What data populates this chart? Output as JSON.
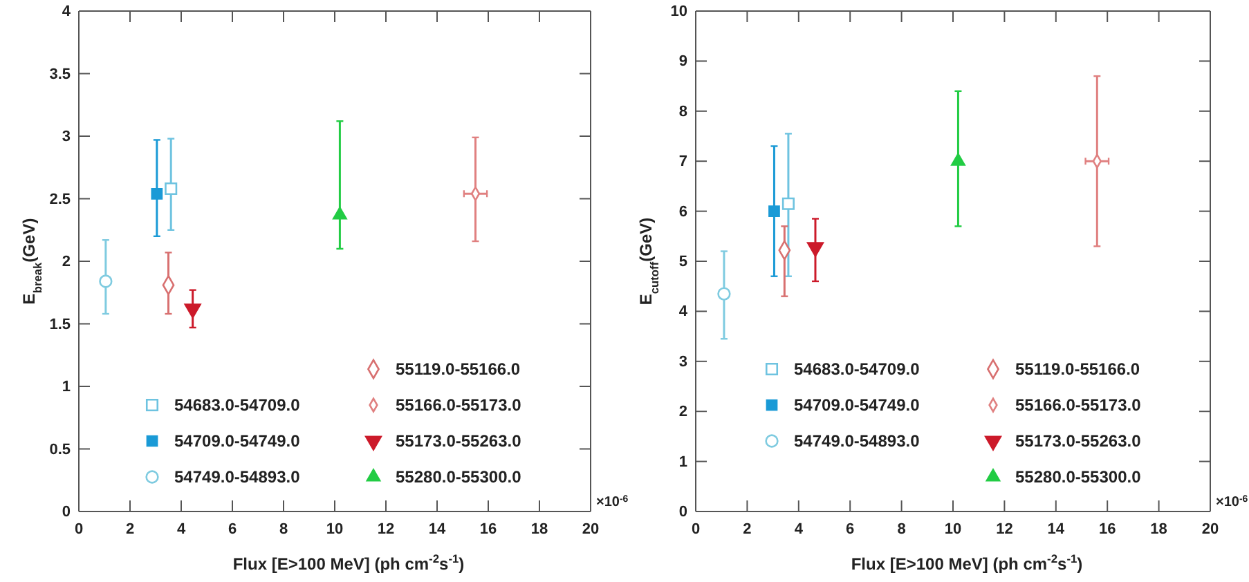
{
  "chart_data": [
    {
      "type": "scatter",
      "xlabel": "Flux [E>100 MeV] (ph cm$^{-2}$s$^{-1}$)",
      "ylabel": "E$_{break}$(GeV)",
      "annotations": [
        "×10$^{-6}$"
      ],
      "xlim": [
        0,
        20
      ],
      "xticks": [
        0,
        2,
        4,
        6,
        8,
        10,
        12,
        14,
        16,
        18,
        20
      ],
      "ylim": [
        0,
        4
      ],
      "yticks": [
        0,
        0.5,
        1,
        1.5,
        2,
        2.5,
        3,
        3.5,
        4
      ],
      "legend": "bottom right",
      "grid": false,
      "series": [
        {
          "name": "54683.0-54709.0",
          "color": "#6ec3e0",
          "marker": "square",
          "x": [
            3.6
          ],
          "values": [
            2.58
          ],
          "errors": [
            [
              2.25,
              2.98
            ]
          ]
        },
        {
          "name": "54709.0-54749.0",
          "color": "#1a9ad6",
          "marker": "square",
          "x": [
            3.05
          ],
          "values": [
            2.54
          ],
          "errors": [
            [
              2.2,
              2.97
            ]
          ]
        },
        {
          "name": "54749.0-54893.0",
          "color": "#7fcbe0",
          "marker": "circle",
          "x": [
            1.05
          ],
          "values": [
            1.84
          ],
          "errors": [
            [
              1.58,
              2.17
            ]
          ]
        },
        {
          "name": "55119.0-55166.0",
          "color": "#d87070",
          "marker": "diamond",
          "x": [
            3.5
          ],
          "values": [
            1.81
          ],
          "errors": [
            [
              1.58,
              2.07
            ]
          ]
        },
        {
          "name": "55166.0-55173.0",
          "color": "#e08080",
          "marker": "diamond",
          "x": [
            15.5
          ],
          "values": [
            2.54
          ],
          "errors": [
            [
              2.16,
              2.99
            ]
          ],
          "xerrors": [
            0.45
          ]
        },
        {
          "name": "55173.0-55263.0",
          "color": "#cc1a2a",
          "marker": "triangle",
          "x": [
            4.45
          ],
          "values": [
            1.62
          ],
          "errors": [
            [
              1.47,
              1.77
            ]
          ]
        },
        {
          "name": "55280.0-55300.0",
          "color": "#22cc44",
          "marker": "triangle",
          "x": [
            10.2
          ],
          "values": [
            2.37
          ],
          "errors": [
            [
              2.1,
              3.12
            ]
          ]
        }
      ]
    },
    {
      "type": "scatter",
      "xlabel": "Flux [E>100 MeV] (ph cm$^{-2}$s$^{-1}$)",
      "ylabel": "E$_{cutoff}$(GeV)",
      "annotations": [
        "×10$^{-6}$"
      ],
      "xlim": [
        0,
        20
      ],
      "xticks": [
        0,
        2,
        4,
        6,
        8,
        10,
        12,
        14,
        16,
        18,
        20
      ],
      "ylim": [
        0,
        10
      ],
      "yticks": [
        0,
        1,
        2,
        3,
        4,
        5,
        6,
        7,
        8,
        9,
        10
      ],
      "legend": "bottom right",
      "grid": false,
      "series": [
        {
          "name": "54683.0-54709.0",
          "color": "#6ec3e0",
          "marker": "square",
          "x": [
            3.6
          ],
          "values": [
            6.15
          ],
          "errors": [
            [
              4.7,
              7.55
            ]
          ]
        },
        {
          "name": "54709.0-54749.0",
          "color": "#1a9ad6",
          "marker": "square",
          "x": [
            3.05
          ],
          "values": [
            6.0
          ],
          "errors": [
            [
              4.7,
              7.3
            ]
          ]
        },
        {
          "name": "54749.0-54893.0",
          "color": "#7fcbe0",
          "marker": "circle",
          "x": [
            1.1
          ],
          "values": [
            4.35
          ],
          "errors": [
            [
              3.45,
              5.2
            ]
          ]
        },
        {
          "name": "55119.0-55166.0",
          "color": "#d87070",
          "marker": "diamond",
          "x": [
            3.45
          ],
          "values": [
            5.22
          ],
          "errors": [
            [
              4.3,
              5.7
            ]
          ]
        },
        {
          "name": "55166.0-55173.0",
          "color": "#e08080",
          "marker": "diamond",
          "x": [
            15.6
          ],
          "values": [
            7.0
          ],
          "errors": [
            [
              5.3,
              8.7
            ]
          ],
          "xerrors": [
            0.45
          ]
        },
        {
          "name": "55173.0-55263.0",
          "color": "#cc1a2a",
          "marker": "triangle",
          "x": [
            4.65
          ],
          "values": [
            5.28
          ],
          "errors": [
            [
              4.6,
              5.85
            ]
          ]
        },
        {
          "name": "55280.0-55300.0",
          "color": "#22cc44",
          "marker": "triangle",
          "x": [
            10.2
          ],
          "values": [
            7.0
          ],
          "errors": [
            [
              5.7,
              8.4
            ]
          ]
        }
      ]
    }
  ]
}
